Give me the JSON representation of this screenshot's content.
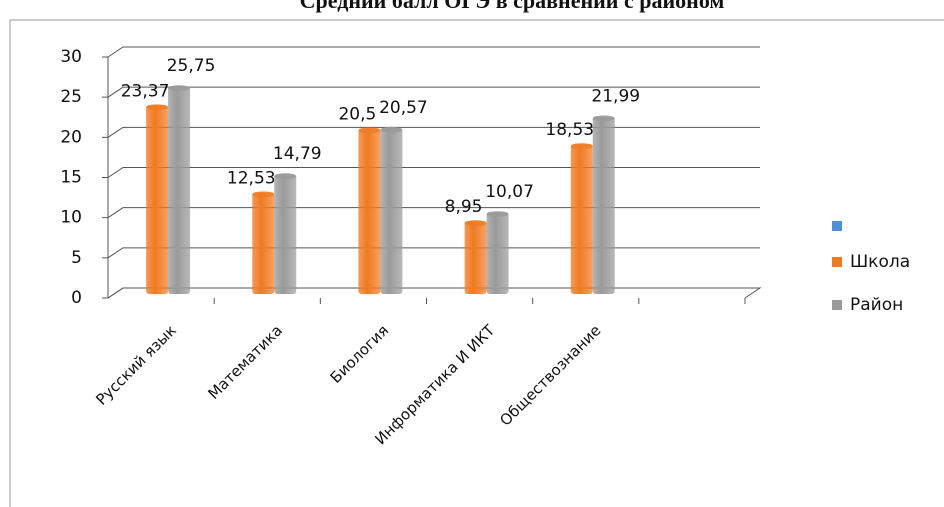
{
  "chart_data": {
    "type": "bar3d",
    "title": "Средний балл ОГЭ в сравнении с районом",
    "categories": [
      "Русский язык",
      "Математика",
      "Биология",
      "Информатика И ИКТ",
      "Обществознание",
      null
    ],
    "series": [
      {
        "name": null,
        "color": "#4f8fd8",
        "values": [
          null,
          null,
          null,
          null,
          null,
          null
        ]
      },
      {
        "name": "Школа",
        "color": "#f07a22",
        "values": [
          23.37,
          12.53,
          20.5,
          8.95,
          18.53,
          null
        ],
        "value_labels": [
          "23,37",
          "12,53",
          "20,5",
          "8,95",
          "18,53",
          null
        ]
      },
      {
        "name": "Район",
        "color": "#9a9a9a",
        "values": [
          25.75,
          14.79,
          20.57,
          10.07,
          21.99,
          null
        ],
        "value_labels": [
          "25,75",
          "14,79",
          "20,57",
          "10,07",
          "21,99",
          null
        ]
      }
    ],
    "ylim": [
      0,
      30
    ],
    "yticks": [
      0,
      5,
      10,
      15,
      20,
      25,
      30
    ],
    "grid": true,
    "legend": "right"
  }
}
